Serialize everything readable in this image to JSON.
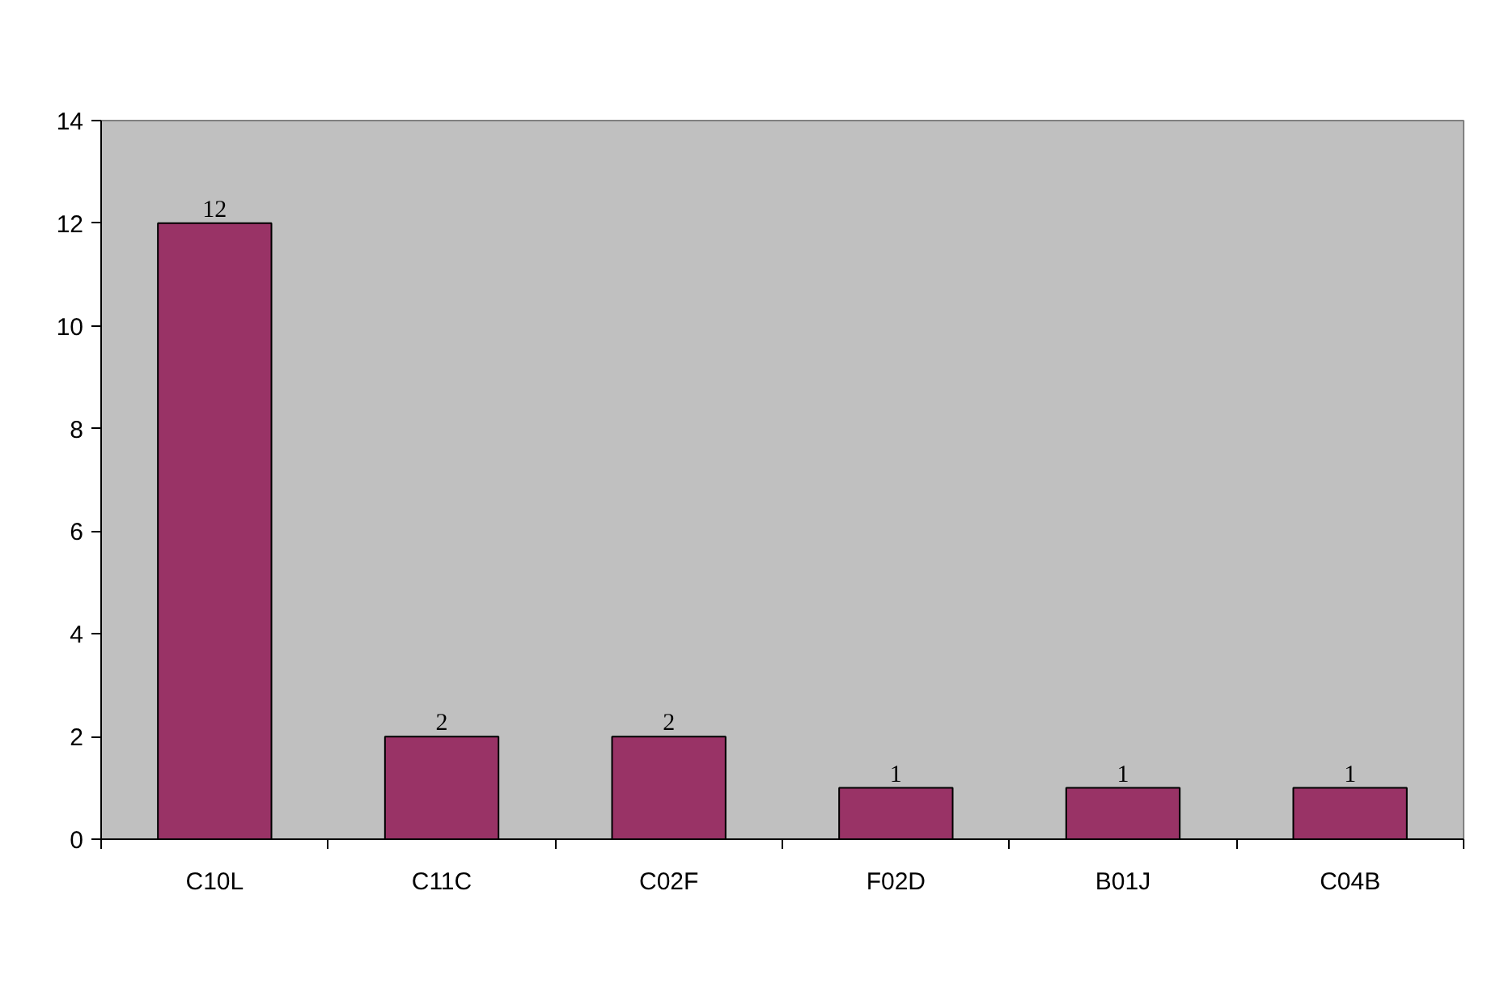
{
  "chart_data": {
    "type": "bar",
    "categories": [
      "C10L",
      "C11C",
      "C02F",
      "F02D",
      "B01J",
      "C04B"
    ],
    "values": [
      12,
      2,
      2,
      1,
      1,
      1
    ],
    "color": "#993366",
    "ylim": [
      0,
      14
    ],
    "yticks": [
      0,
      2,
      4,
      6,
      8,
      10,
      12,
      14
    ],
    "data_labels": true
  }
}
